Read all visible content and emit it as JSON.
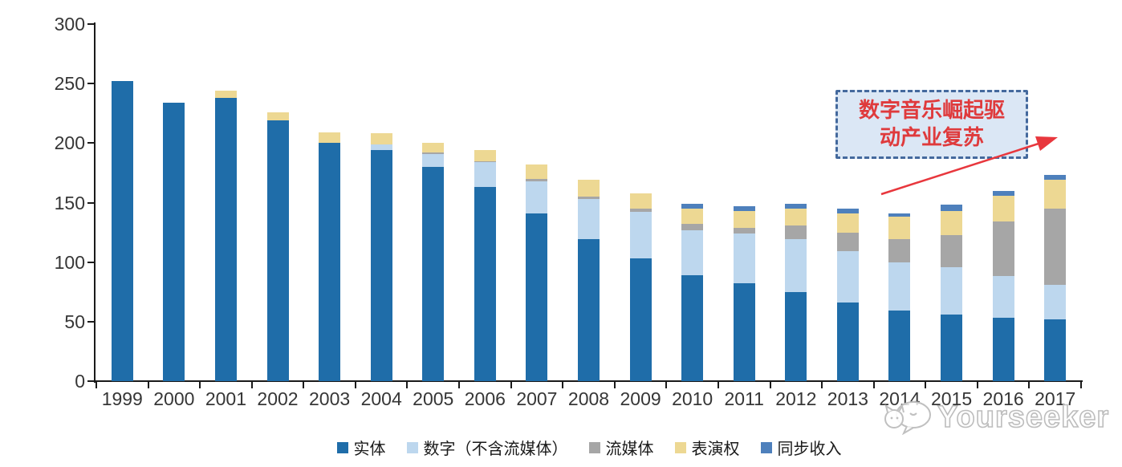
{
  "chart_data": {
    "type": "bar",
    "stacked": true,
    "categories": [
      "1999",
      "2000",
      "2001",
      "2002",
      "2003",
      "2004",
      "2005",
      "2006",
      "2007",
      "2008",
      "2009",
      "2010",
      "2011",
      "2012",
      "2013",
      "2014",
      "2015",
      "2016",
      "2017"
    ],
    "series": [
      {
        "name": "实体",
        "color": "#1F6DA9",
        "values": [
          252,
          234,
          238,
          219,
          200,
          194,
          180,
          163,
          141,
          119,
          103,
          89,
          82,
          75,
          66,
          59,
          56,
          53,
          52
        ]
      },
      {
        "name": "数字（不含流媒体）",
        "color": "#BDD7EE",
        "values": [
          0,
          0,
          0,
          0,
          0,
          5,
          11,
          21,
          27,
          34,
          39,
          38,
          42,
          44,
          43,
          41,
          40,
          35,
          29
        ]
      },
      {
        "name": "流媒体",
        "color": "#A6A6A6",
        "values": [
          0,
          0,
          0,
          0,
          0,
          0,
          1,
          1,
          2,
          2,
          3,
          5,
          5,
          12,
          16,
          19,
          27,
          46,
          64
        ]
      },
      {
        "name": "表演权",
        "color": "#EDD893",
        "values": [
          0,
          0,
          6,
          7,
          9,
          9,
          8,
          9,
          12,
          14,
          13,
          13,
          14,
          14,
          16,
          19,
          20,
          22,
          24
        ]
      },
      {
        "name": "同步收入",
        "color": "#4E80BC",
        "values": [
          0,
          0,
          0,
          0,
          0,
          0,
          0,
          0,
          0,
          0,
          0,
          4,
          4,
          4,
          4,
          3,
          5,
          4,
          4
        ]
      }
    ],
    "title": "",
    "xlabel": "",
    "ylabel": "",
    "ylim": [
      0,
      300
    ],
    "yticks": [
      0,
      50,
      100,
      150,
      200,
      250,
      300
    ],
    "grid": false,
    "legend_position": "bottom",
    "axis_color": "#1a1a1a",
    "tick_label_color": "#363636"
  },
  "annotation": {
    "lines": [
      "数字音乐崛起驱",
      "动产业复苏"
    ],
    "text_color": "#DF3A3C",
    "box_fill": "#DBE7F5",
    "box_border": "#44699D",
    "arrow_color": "#E8373D"
  },
  "watermark": {
    "text": "Yourseeker",
    "logo": "speech-bubble-mascot-logo",
    "color": "#bdbdbd"
  }
}
